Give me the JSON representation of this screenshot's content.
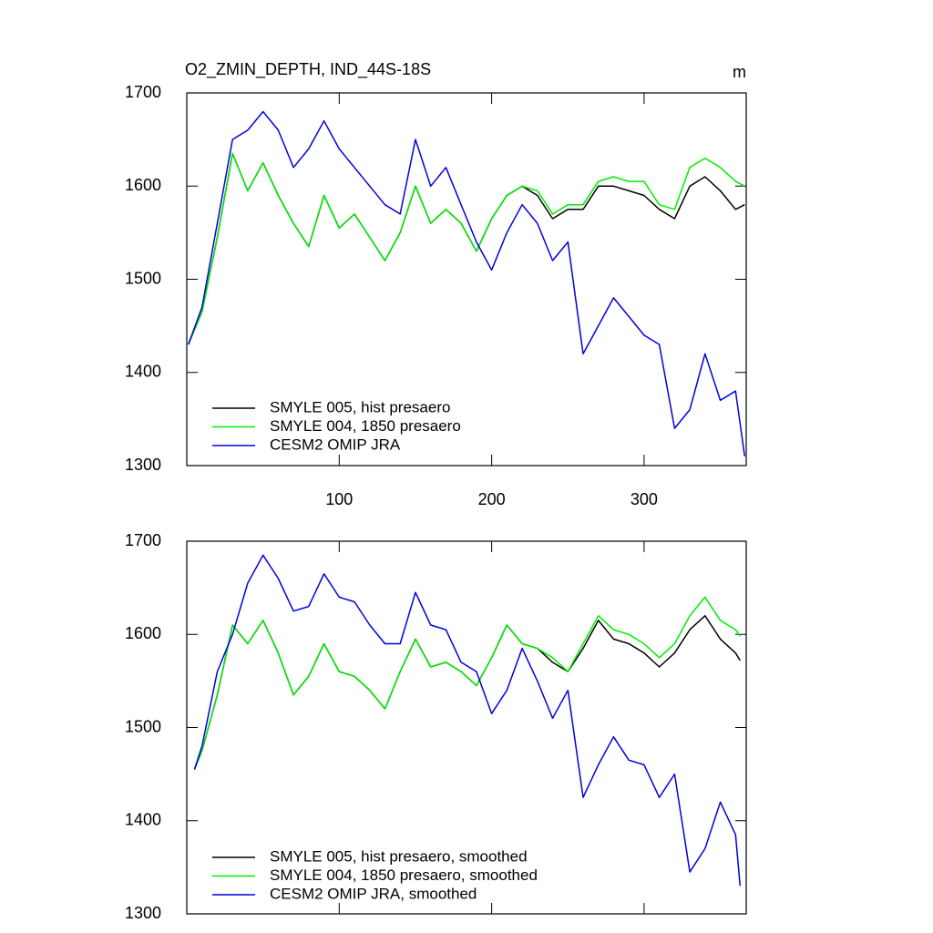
{
  "chart_data": [
    {
      "type": "line",
      "title": "O2_ZMIN_DEPTH, IND_44S-18S",
      "units": "m",
      "x": [
        1,
        10,
        20,
        30,
        40,
        50,
        60,
        70,
        80,
        90,
        100,
        110,
        120,
        130,
        140,
        150,
        160,
        170,
        180,
        190,
        200,
        210,
        220,
        230,
        240,
        250,
        260,
        270,
        280,
        290,
        300,
        310,
        320,
        330,
        340,
        350,
        360,
        366
      ],
      "series": [
        {
          "name": "SMYLE 005, hist presaero",
          "color": "#000000",
          "values": [
            1430,
            1465,
            1545,
            1635,
            1595,
            1625,
            1590,
            1560,
            1535,
            1590,
            1555,
            1570,
            1545,
            1520,
            1550,
            1600,
            1560,
            1575,
            1560,
            1530,
            1565,
            1590,
            1600,
            1590,
            1565,
            1575,
            1575,
            1600,
            1600,
            1595,
            1590,
            1575,
            1565,
            1600,
            1610,
            1595,
            1575,
            1580
          ]
        },
        {
          "name": "SMYLE 004, 1850 presaero",
          "color": "#00ee00",
          "values": [
            1430,
            1465,
            1545,
            1635,
            1595,
            1625,
            1590,
            1560,
            1535,
            1590,
            1555,
            1570,
            1545,
            1520,
            1550,
            1600,
            1560,
            1575,
            1560,
            1530,
            1565,
            1590,
            1600,
            1595,
            1570,
            1580,
            1580,
            1605,
            1610,
            1605,
            1605,
            1580,
            1575,
            1620,
            1630,
            1620,
            1605,
            1600
          ]
        },
        {
          "name": "CESM2 OMIP JRA",
          "color": "#0000dd",
          "values": [
            1430,
            1470,
            1560,
            1650,
            1660,
            1680,
            1660,
            1620,
            1640,
            1670,
            1640,
            1620,
            1600,
            1580,
            1570,
            1650,
            1600,
            1620,
            1580,
            1540,
            1510,
            1550,
            1580,
            1560,
            1520,
            1540,
            1420,
            1450,
            1480,
            1460,
            1440,
            1430,
            1340,
            1360,
            1420,
            1370,
            1380,
            1310
          ]
        }
      ],
      "xlim": [
        0,
        367
      ],
      "xticks": [
        100,
        200,
        300
      ],
      "ylim": [
        1300,
        1700
      ],
      "yticks": [
        1300,
        1400,
        1500,
        1600,
        1700
      ],
      "xticklabels": true
    },
    {
      "type": "line",
      "x": [
        5,
        10,
        20,
        30,
        40,
        50,
        60,
        70,
        80,
        90,
        100,
        110,
        120,
        130,
        140,
        150,
        160,
        170,
        180,
        190,
        200,
        210,
        220,
        230,
        240,
        250,
        260,
        270,
        280,
        290,
        300,
        310,
        320,
        330,
        340,
        350,
        360,
        363
      ],
      "series": [
        {
          "name": "SMYLE 005, hist presaero, smoothed",
          "color": "#000000",
          "values": [
            1455,
            1475,
            1535,
            1610,
            1590,
            1615,
            1580,
            1535,
            1555,
            1590,
            1560,
            1555,
            1540,
            1520,
            1560,
            1595,
            1565,
            1570,
            1560,
            1545,
            1575,
            1610,
            1590,
            1585,
            1570,
            1560,
            1585,
            1615,
            1595,
            1590,
            1580,
            1565,
            1580,
            1605,
            1620,
            1595,
            1580,
            1572
          ]
        },
        {
          "name": "SMYLE 004, 1850 presaero, smoothed",
          "color": "#00ee00",
          "values": [
            1455,
            1475,
            1535,
            1610,
            1590,
            1615,
            1580,
            1535,
            1555,
            1590,
            1560,
            1555,
            1540,
            1520,
            1560,
            1595,
            1565,
            1570,
            1560,
            1545,
            1575,
            1610,
            1590,
            1585,
            1575,
            1560,
            1590,
            1620,
            1605,
            1600,
            1590,
            1575,
            1590,
            1620,
            1640,
            1615,
            1605,
            1598
          ]
        },
        {
          "name": "CESM2 OMIP JRA, smoothed",
          "color": "#0000dd",
          "values": [
            1455,
            1480,
            1560,
            1600,
            1655,
            1685,
            1660,
            1625,
            1630,
            1665,
            1640,
            1635,
            1610,
            1590,
            1590,
            1645,
            1610,
            1605,
            1570,
            1560,
            1515,
            1540,
            1585,
            1550,
            1510,
            1540,
            1425,
            1460,
            1490,
            1465,
            1460,
            1425,
            1450,
            1345,
            1370,
            1420,
            1385,
            1330
          ]
        }
      ],
      "xlim": [
        0,
        367
      ],
      "xticks": [
        100,
        200,
        300
      ],
      "ylim": [
        1300,
        1700
      ],
      "yticks": [
        1300,
        1400,
        1500,
        1600,
        1700
      ],
      "xticklabels": false
    }
  ]
}
